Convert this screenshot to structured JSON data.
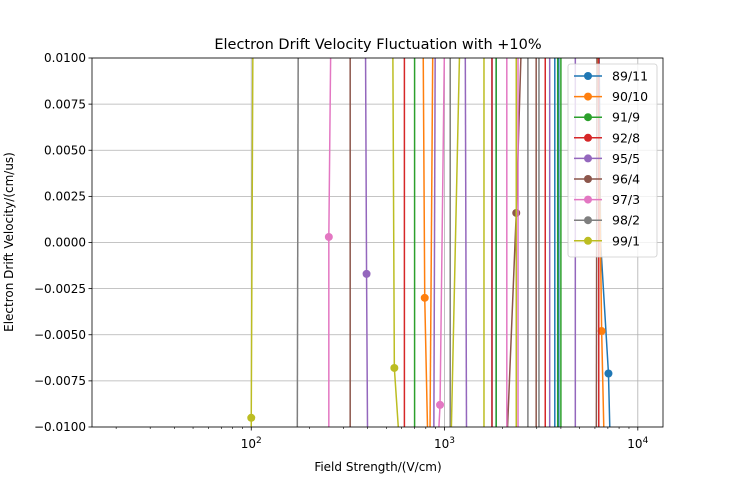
{
  "chart_data": {
    "type": "line",
    "title": "Electron Drift Velocity Fluctuation with +10%",
    "xlabel": "Field Strength/(V/cm)",
    "ylabel": "Electron Drift Velocity/(cm/us)",
    "xscale": "log",
    "xlim": [
      15,
      13500
    ],
    "ylim": [
      -0.01,
      0.01
    ],
    "xticks": [
      {
        "value": 100,
        "base": "10",
        "exp": "2"
      },
      {
        "value": 1000,
        "base": "10",
        "exp": "3"
      },
      {
        "value": 10000,
        "base": "10",
        "exp": "4"
      }
    ],
    "yticks": [
      {
        "value": 0.01,
        "label": "0.0100"
      },
      {
        "value": 0.0075,
        "label": "0.0075"
      },
      {
        "value": 0.005,
        "label": "0.0050"
      },
      {
        "value": 0.0025,
        "label": "0.0025"
      },
      {
        "value": 0.0,
        "label": "0.0000"
      },
      {
        "value": -0.0025,
        "label": "−0.0025"
      },
      {
        "value": -0.005,
        "label": "−0.0050"
      },
      {
        "value": -0.0075,
        "label": "−0.0075"
      },
      {
        "value": -0.01,
        "label": "−0.0100"
      }
    ],
    "grid": true,
    "legend_position": "top-right",
    "series": [
      {
        "name": "89/11",
        "color": "#1f77b4",
        "segments": [
          [
            [
              1760,
              0.011
            ],
            [
              1760,
              -0.011
            ]
          ],
          [
            [
              1850,
              -0.011
            ],
            [
              1850,
              0.011
            ]
          ],
          [
            [
              3720,
              0.011
            ],
            [
              3720,
              -0.011
            ]
          ],
          [
            [
              3900,
              -0.011
            ],
            [
              3900,
              0.011
            ]
          ],
          [
            [
              6300,
              0.011
            ],
            [
              6420,
              0.0
            ],
            [
              7050,
              -0.0071
            ],
            [
              7200,
              -0.011
            ]
          ]
        ],
        "markers": [
          [
            7050,
            -0.0071
          ]
        ]
      },
      {
        "name": "90/10",
        "color": "#ff7f0e",
        "segments": [
          [
            [
              775,
              0.011
            ],
            [
              790,
              -0.003
            ],
            [
              820,
              -0.011
            ]
          ],
          [
            [
              840,
              -0.011
            ],
            [
              870,
              0.011
            ]
          ],
          [
            [
              6200,
              0.011
            ],
            [
              6500,
              -0.0048
            ],
            [
              6700,
              -0.011
            ]
          ]
        ],
        "markers": [
          [
            790,
            -0.003
          ],
          [
            6500,
            -0.0048
          ]
        ]
      },
      {
        "name": "91/9",
        "color": "#2ca02c",
        "segments": [
          [
            [
              700,
              0.011
            ],
            [
              700,
              -0.011
            ]
          ],
          [
            [
              1850,
              -0.011
            ],
            [
              1850,
              0.011
            ]
          ],
          [
            [
              3850,
              0.011
            ],
            [
              3850,
              -0.011
            ]
          ],
          [
            [
              4000,
              -0.011
            ],
            [
              4000,
              0.011
            ]
          ]
        ],
        "markers": []
      },
      {
        "name": "92/8",
        "color": "#d62728",
        "segments": [
          [
            [
              620,
              0.011
            ],
            [
              620,
              -0.011
            ]
          ],
          [
            [
              1760,
              -0.011
            ],
            [
              1760,
              0.011
            ]
          ],
          [
            [
              3320,
              0.011
            ],
            [
              3320,
              -0.011
            ]
          ],
          [
            [
              6280,
              -0.011
            ],
            [
              6280,
              0.011
            ]
          ]
        ],
        "markers": []
      },
      {
        "name": "95/5",
        "color": "#9467bd",
        "segments": [
          [
            [
              390,
              0.011
            ],
            [
              395,
              -0.0017
            ],
            [
              400,
              -0.011
            ]
          ],
          [
            [
              880,
              -0.011
            ],
            [
              895,
              0.011
            ]
          ],
          [
            [
              1280,
              0.011
            ],
            [
              1300,
              -0.011
            ]
          ],
          [
            [
              3500,
              -0.011
            ],
            [
              3500,
              0.011
            ]
          ],
          [
            [
              4750,
              0.011
            ],
            [
              4750,
              -0.011
            ]
          ]
        ],
        "markers": [
          [
            395,
            -0.0017
          ]
        ]
      },
      {
        "name": "96/4",
        "color": "#8c564b",
        "segments": [
          [
            [
              325,
              0.011
            ],
            [
              325,
              -0.011
            ]
          ],
          [
            [
              2100,
              -0.011
            ],
            [
              2350,
              0.0016
            ],
            [
              2500,
              0.011
            ]
          ],
          [
            [
              2980,
              0.011
            ],
            [
              2980,
              -0.011
            ]
          ],
          [
            [
              6100,
              -0.011
            ],
            [
              6150,
              0.011
            ]
          ]
        ],
        "markers": [
          [
            2350,
            0.0016
          ]
        ]
      },
      {
        "name": "97/3",
        "color": "#e377c2",
        "segments": [
          [
            [
              252,
              -0.011
            ],
            [
              252,
              0.0003
            ],
            [
              258,
              0.011
            ]
          ],
          [
            [
              925,
              -0.011
            ],
            [
              948,
              -0.0088
            ],
            [
              1000,
              0.011
            ]
          ],
          [
            [
              2100,
              0.011
            ],
            [
              2100,
              -0.011
            ]
          ],
          [
            [
              2400,
              -0.011
            ],
            [
              2400,
              0.011
            ]
          ]
        ],
        "markers": [
          [
            252,
            0.0003
          ],
          [
            948,
            -0.0088
          ]
        ]
      },
      {
        "name": "98/2",
        "color": "#7f7f7f",
        "segments": [
          [
            [
              173,
              -0.011
            ],
            [
              175,
              0.011
            ]
          ],
          [
            [
              1070,
              0.011
            ],
            [
              1070,
              -0.011
            ]
          ],
          [
            [
              2700,
              -0.011
            ],
            [
              2700,
              0.011
            ]
          ],
          [
            [
              3080,
              0.011
            ],
            [
              3080,
              -0.011
            ]
          ]
        ],
        "markers": []
      },
      {
        "name": "99/1",
        "color": "#bcbd22",
        "segments": [
          [
            [
              100,
              -0.011
            ],
            [
              100,
              -0.0095
            ],
            [
              102,
              0.011
            ]
          ],
          [
            [
              540,
              0.011
            ],
            [
              550,
              -0.0068
            ],
            [
              585,
              -0.011
            ]
          ],
          [
            [
              1080,
              -0.011
            ],
            [
              1200,
              0.011
            ]
          ],
          [
            [
              1600,
              0.011
            ],
            [
              1600,
              -0.011
            ]
          ],
          [
            [
              2350,
              -0.011
            ],
            [
              2350,
              0.011
            ]
          ]
        ],
        "markers": [
          [
            100,
            -0.0095
          ],
          [
            550,
            -0.0068
          ]
        ]
      }
    ]
  }
}
